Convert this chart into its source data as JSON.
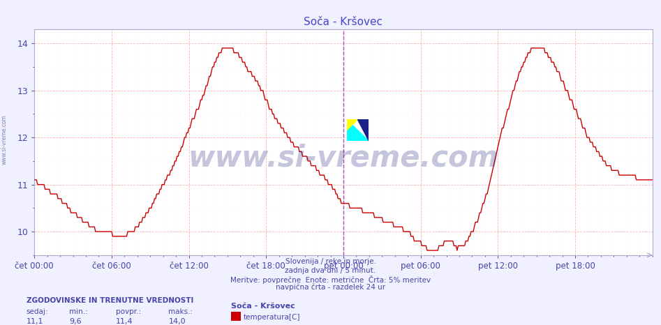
{
  "title": "Soča - Kršovec",
  "title_color": "#4444cc",
  "bg_color": "#f0f0ff",
  "plot_bg_color": "#ffffff",
  "grid_color_major": "#ffaaaa",
  "grid_color_minor": "#ffdddd",
  "line_color": "#cc0000",
  "line_width": 1.0,
  "ylim_min": 9.5,
  "ylim_max": 14.3,
  "yticks": [
    10,
    11,
    12,
    13,
    14
  ],
  "xlabel_color": "#4444aa",
  "ylabel_color": "#4444aa",
  "xtick_labels": [
    "čet 00:00",
    "čet 06:00",
    "čet 12:00",
    "čet 18:00",
    "pet 00:00",
    "pet 06:00",
    "pet 12:00",
    "pet 18:00"
  ],
  "xtick_positions": [
    0,
    72,
    144,
    216,
    288,
    360,
    432,
    504
  ],
  "total_points": 577,
  "vline_position": 288,
  "vline_color": "#bb44bb",
  "footer_lines": [
    "Slovenija / reke in morje.",
    "zadnja dva dni / 5 minut.",
    "Meritve: povprečne  Enote: metrične  Črta: 5% meritev",
    "navpična črta - razdelek 24 ur"
  ],
  "footer_color": "#4444aa",
  "stats_header": "ZGODOVINSKE IN TRENUTNE VREDNOSTI",
  "stats_labels": [
    "sedaj:",
    "min.:",
    "povpr.:",
    "maks.:"
  ],
  "stats_values": [
    "11,1",
    "9,6",
    "11,4",
    "14,0"
  ],
  "legend_station": "Soča - Kršovec",
  "legend_label": "temperatura[C]",
  "legend_color": "#cc0000",
  "watermark": "www.si-vreme.com",
  "watermark_color": "#1a1a7a",
  "watermark_alpha": 0.25,
  "left_label": "www.si-vreme.com",
  "left_label_color": "#6666aa",
  "spine_color": "#aaaacc",
  "tick_color": "#4444aa"
}
